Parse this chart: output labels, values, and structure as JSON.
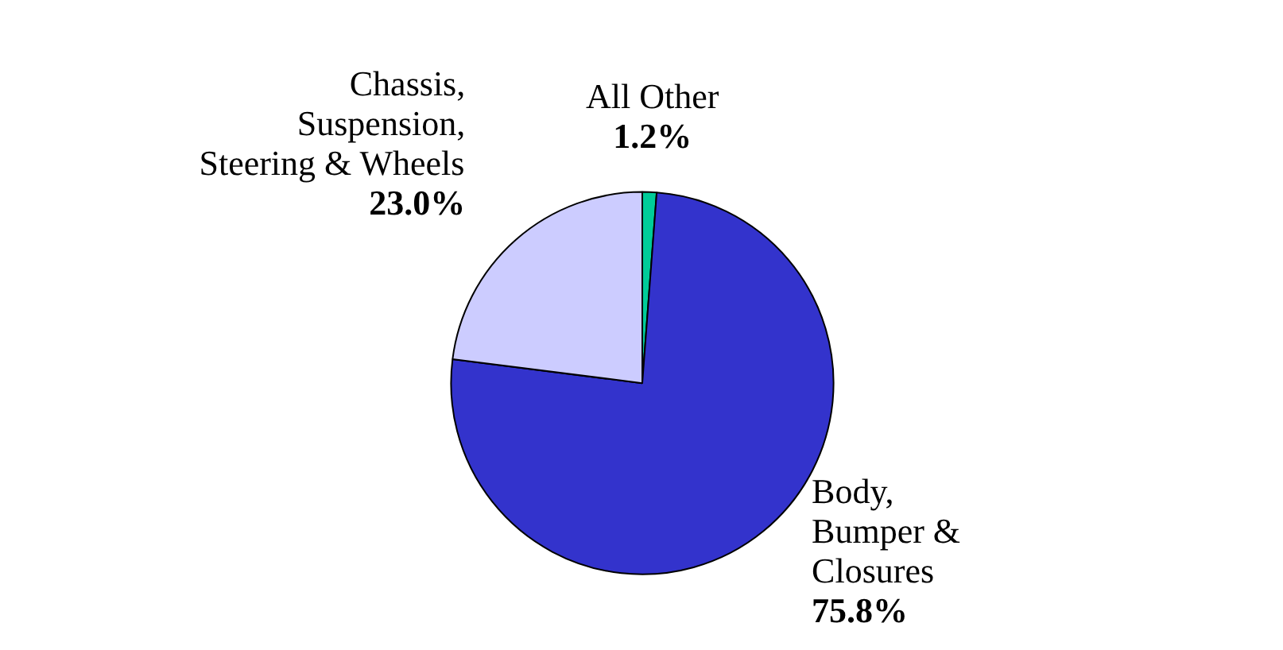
{
  "chart_data": {
    "type": "pie",
    "categories": [
      "All Other",
      "Body,\nBumper &\nClosures",
      "Chassis,\nSuspension,\nSteering & Wheels"
    ],
    "values": [
      1.2,
      75.8,
      23.0
    ],
    "colors": [
      "#00cc99",
      "#3333cc",
      "#ccccff"
    ],
    "value_labels": [
      "1.2%",
      "75.8%",
      "23.0%"
    ]
  }
}
